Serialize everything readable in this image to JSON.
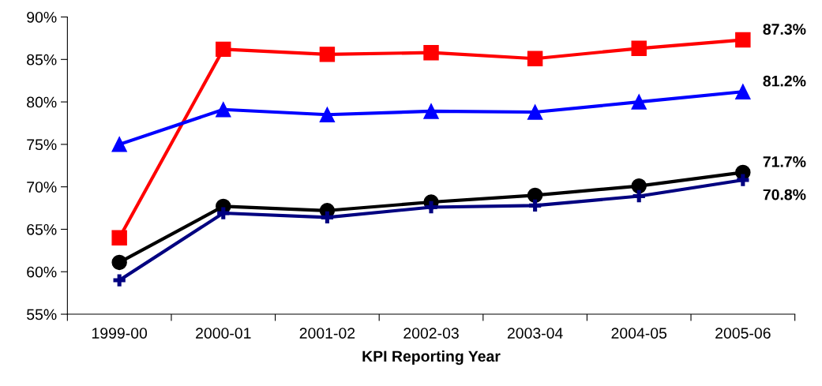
{
  "chart_data": {
    "type": "line",
    "xlabel": "KPI Reporting Year",
    "categories": [
      "1999-00",
      "2000-01",
      "2001-02",
      "2002-03",
      "2003-04",
      "2004-05",
      "2005-06"
    ],
    "series": [
      {
        "color": "#ff0000",
        "marker": "square",
        "values": [
          64.0,
          86.2,
          85.6,
          85.8,
          85.1,
          86.3,
          87.3
        ],
        "value_labels": [
          null,
          null,
          null,
          null,
          null,
          null,
          "87.3%"
        ]
      },
      {
        "color": "#0000ff",
        "marker": "triangle",
        "values": [
          75.0,
          79.1,
          78.5,
          78.9,
          78.8,
          80.0,
          81.2
        ],
        "value_labels": [
          null,
          null,
          null,
          null,
          null,
          null,
          "81.2%"
        ]
      },
      {
        "color": "#000000",
        "marker": "circle",
        "values": [
          61.1,
          67.7,
          67.2,
          68.2,
          69.0,
          70.1,
          71.7
        ],
        "value_labels": [
          null,
          null,
          null,
          null,
          null,
          null,
          "71.7%"
        ]
      },
      {
        "color": "#000080",
        "marker": "cross",
        "values": [
          59.0,
          66.9,
          66.4,
          67.6,
          67.8,
          68.9,
          70.8
        ],
        "value_labels": [
          null,
          null,
          null,
          null,
          null,
          null,
          "70.8%"
        ]
      }
    ],
    "ylim": [
      55,
      90
    ],
    "yticks": [
      {
        "value": 55,
        "label": "55%"
      },
      {
        "value": 60,
        "label": "60%"
      },
      {
        "value": 65,
        "label": "65%"
      },
      {
        "value": 70,
        "label": "70%"
      },
      {
        "value": 75,
        "label": "75%"
      },
      {
        "value": 80,
        "label": "80%"
      },
      {
        "value": 85,
        "label": "85%"
      },
      {
        "value": 90,
        "label": "90%"
      }
    ],
    "grid": false,
    "legend": false
  }
}
